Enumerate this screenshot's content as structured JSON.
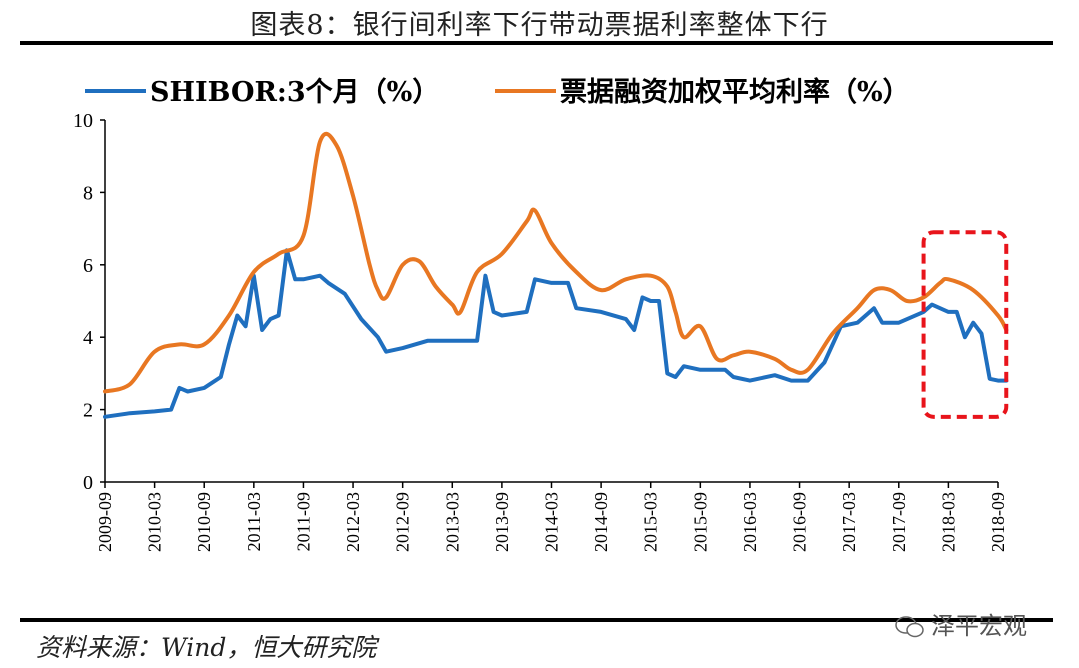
{
  "title": "图表8：银行间利率下行带动票据利率整体下行",
  "source": "资料来源：Wind，恒大研究院",
  "watermark": "泽平宏观",
  "chart_data": {
    "type": "line",
    "ylim": [
      0,
      10
    ],
    "yticks": [
      "0",
      "2",
      "4",
      "6",
      "8",
      "10"
    ],
    "xticks": [
      "2009-09",
      "2010-03",
      "2010-09",
      "2011-03",
      "2011-09",
      "2012-03",
      "2012-09",
      "2013-03",
      "2013-09",
      "2014-03",
      "2014-09",
      "2015-03",
      "2015-09",
      "2016-03",
      "2016-09",
      "2017-03",
      "2017-09",
      "2018-03",
      "2018-09"
    ],
    "grid": false,
    "legend_position": "top",
    "highlight_box": {
      "x_start": "2017-12",
      "x_end": "2018-10",
      "y_low": 1.8,
      "y_high": 6.9,
      "color": "#e8141b"
    },
    "series": [
      {
        "name": "SHIBOR:3个月（%）",
        "color": "#1f6fbf",
        "points": [
          [
            "2009-09",
            1.8
          ],
          [
            "2009-12",
            1.9
          ],
          [
            "2010-03",
            1.95
          ],
          [
            "2010-05",
            2.0
          ],
          [
            "2010-06",
            2.6
          ],
          [
            "2010-07",
            2.5
          ],
          [
            "2010-09",
            2.6
          ],
          [
            "2010-11",
            2.9
          ],
          [
            "2010-12",
            3.8
          ],
          [
            "2011-01",
            4.6
          ],
          [
            "2011-02",
            4.3
          ],
          [
            "2011-03",
            5.7
          ],
          [
            "2011-04",
            4.2
          ],
          [
            "2011-05",
            4.5
          ],
          [
            "2011-06",
            4.6
          ],
          [
            "2011-07",
            6.4
          ],
          [
            "2011-08",
            5.6
          ],
          [
            "2011-09",
            5.6
          ],
          [
            "2011-11",
            5.7
          ],
          [
            "2011-12",
            5.5
          ],
          [
            "2012-02",
            5.2
          ],
          [
            "2012-04",
            4.5
          ],
          [
            "2012-06",
            4.0
          ],
          [
            "2012-07",
            3.6
          ],
          [
            "2012-09",
            3.7
          ],
          [
            "2012-12",
            3.9
          ],
          [
            "2013-03",
            3.9
          ],
          [
            "2013-06",
            3.9
          ],
          [
            "2013-07",
            5.7
          ],
          [
            "2013-08",
            4.7
          ],
          [
            "2013-09",
            4.6
          ],
          [
            "2013-12",
            4.7
          ],
          [
            "2014-01",
            5.6
          ],
          [
            "2014-03",
            5.5
          ],
          [
            "2014-05",
            5.5
          ],
          [
            "2014-06",
            4.8
          ],
          [
            "2014-09",
            4.7
          ],
          [
            "2014-12",
            4.5
          ],
          [
            "2015-01",
            4.2
          ],
          [
            "2015-02",
            5.1
          ],
          [
            "2015-03",
            5.0
          ],
          [
            "2015-04",
            5.0
          ],
          [
            "2015-05",
            3.0
          ],
          [
            "2015-06",
            2.9
          ],
          [
            "2015-07",
            3.2
          ],
          [
            "2015-09",
            3.1
          ],
          [
            "2015-12",
            3.1
          ],
          [
            "2016-01",
            2.9
          ],
          [
            "2016-03",
            2.8
          ],
          [
            "2016-06",
            2.95
          ],
          [
            "2016-08",
            2.8
          ],
          [
            "2016-10",
            2.8
          ],
          [
            "2016-12",
            3.3
          ],
          [
            "2017-02",
            4.3
          ],
          [
            "2017-04",
            4.4
          ],
          [
            "2017-06",
            4.8
          ],
          [
            "2017-07",
            4.4
          ],
          [
            "2017-09",
            4.4
          ],
          [
            "2017-12",
            4.7
          ],
          [
            "2018-01",
            4.9
          ],
          [
            "2018-03",
            4.7
          ],
          [
            "2018-04",
            4.7
          ],
          [
            "2018-05",
            4.0
          ],
          [
            "2018-06",
            4.4
          ],
          [
            "2018-07",
            4.1
          ],
          [
            "2018-08",
            2.85
          ],
          [
            "2018-09",
            2.8
          ],
          [
            "2018-10",
            2.8
          ]
        ]
      },
      {
        "name": "票据融资加权平均利率（%）",
        "color": "#e87722",
        "points": [
          [
            "2009-09",
            2.5
          ],
          [
            "2009-12",
            2.7
          ],
          [
            "2010-03",
            3.6
          ],
          [
            "2010-06",
            3.8
          ],
          [
            "2010-09",
            3.8
          ],
          [
            "2010-12",
            4.6
          ],
          [
            "2011-03",
            5.8
          ],
          [
            "2011-06",
            6.3
          ],
          [
            "2011-09",
            6.8
          ],
          [
            "2011-11",
            9.4
          ],
          [
            "2012-01",
            9.3
          ],
          [
            "2012-03",
            7.9
          ],
          [
            "2012-05",
            6.0
          ],
          [
            "2012-06",
            5.3
          ],
          [
            "2012-07",
            5.1
          ],
          [
            "2012-09",
            6.0
          ],
          [
            "2012-11",
            6.1
          ],
          [
            "2013-01",
            5.4
          ],
          [
            "2013-03",
            4.9
          ],
          [
            "2013-04",
            4.7
          ],
          [
            "2013-06",
            5.8
          ],
          [
            "2013-09",
            6.3
          ],
          [
            "2013-12",
            7.2
          ],
          [
            "2014-01",
            7.5
          ],
          [
            "2014-03",
            6.6
          ],
          [
            "2014-06",
            5.8
          ],
          [
            "2014-09",
            5.3
          ],
          [
            "2014-12",
            5.6
          ],
          [
            "2015-03",
            5.7
          ],
          [
            "2015-05",
            5.4
          ],
          [
            "2015-06",
            4.7
          ],
          [
            "2015-07",
            4.0
          ],
          [
            "2015-09",
            4.3
          ],
          [
            "2015-11",
            3.4
          ],
          [
            "2016-01",
            3.5
          ],
          [
            "2016-03",
            3.6
          ],
          [
            "2016-06",
            3.4
          ],
          [
            "2016-08",
            3.1
          ],
          [
            "2016-10",
            3.1
          ],
          [
            "2017-01",
            4.1
          ],
          [
            "2017-04",
            4.8
          ],
          [
            "2017-06",
            5.3
          ],
          [
            "2017-08",
            5.3
          ],
          [
            "2017-10",
            5.0
          ],
          [
            "2017-12",
            5.1
          ],
          [
            "2018-02",
            5.5
          ],
          [
            "2018-03",
            5.6
          ],
          [
            "2018-06",
            5.3
          ],
          [
            "2018-09",
            4.6
          ],
          [
            "2018-10",
            4.2
          ]
        ]
      }
    ]
  }
}
